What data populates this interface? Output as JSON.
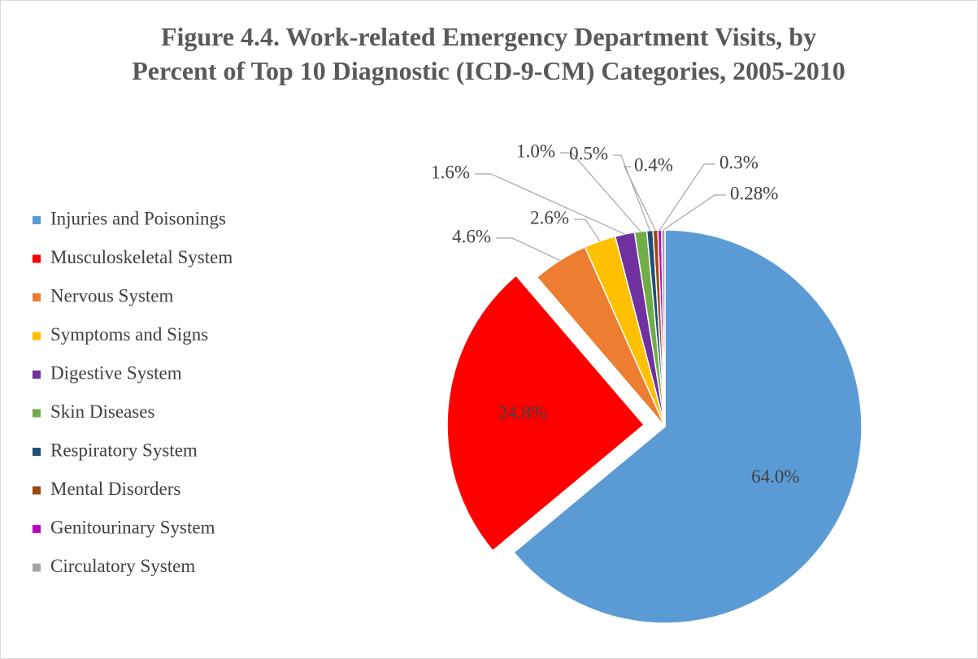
{
  "chart_data": {
    "type": "pie",
    "title": "Figure 4.4. Work-related Emergency Department Visits, by Percent of Top 10 Diagnostic (ICD-9-CM) Categories, 2005-2010",
    "categories": [
      "Injuries and Poisonings",
      "Musculoskeletal System",
      "Nervous System",
      "Symptoms and Signs",
      "Digestive System",
      "Skin Diseases",
      "Respiratory System",
      "Mental Disorders",
      "Genitourinary System",
      "Circulatory System"
    ],
    "values": [
      64.0,
      24.8,
      4.6,
      2.6,
      1.6,
      1.0,
      0.5,
      0.4,
      0.3,
      0.28
    ],
    "value_labels": [
      "64.0%",
      "24.8%",
      "4.6%",
      "2.6%",
      "1.6%",
      "1.0%",
      "0.5%",
      "0.4%",
      "0.3%",
      "0.28%"
    ],
    "colors": [
      "#5b9bd5",
      "#ff0000",
      "#ed7d31",
      "#ffc000",
      "#7030a0",
      "#70ad47",
      "#1f4e79",
      "#9e480e",
      "#c000c0",
      "#a5a5a5"
    ],
    "legend": "left"
  }
}
